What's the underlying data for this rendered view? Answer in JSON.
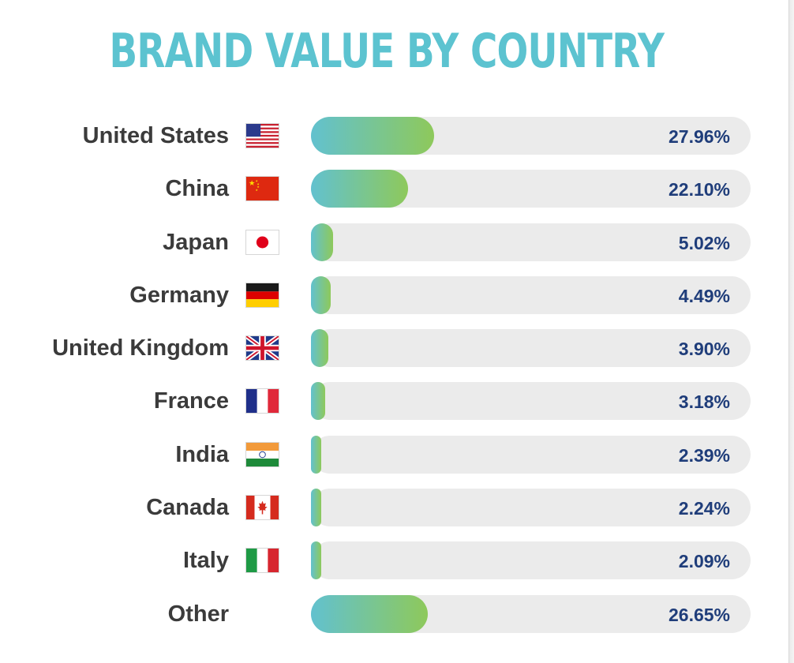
{
  "chart_data": {
    "type": "bar",
    "title": "BRAND VALUE BY COUNTRY",
    "xlim": [
      0,
      100
    ],
    "categories": [
      "United States",
      "China",
      "Japan",
      "Germany",
      "United Kingdom",
      "France",
      "India",
      "Canada",
      "Italy",
      "Other"
    ],
    "values": [
      27.96,
      22.1,
      5.02,
      4.49,
      3.9,
      3.18,
      2.39,
      2.24,
      2.09,
      26.65
    ],
    "value_labels": [
      "27.96%",
      "22.10%",
      "5.02%",
      "4.49%",
      "3.90%",
      "3.18%",
      "2.39%",
      "2.24%",
      "2.09%",
      "26.65%"
    ],
    "flags": [
      "us-flag-icon",
      "china-flag-icon",
      "japan-flag-icon",
      "germany-flag-icon",
      "uk-flag-icon",
      "france-flag-icon",
      "india-flag-icon",
      "canada-flag-icon",
      "italy-flag-icon",
      ""
    ],
    "colors": {
      "title": "#5cc3d0",
      "bar_start": "#62c1cf",
      "bar_end": "#8ec95b",
      "track": "#ebebeb",
      "value_text": "#1f3d7a",
      "label_text": "#3b3b3b"
    }
  }
}
